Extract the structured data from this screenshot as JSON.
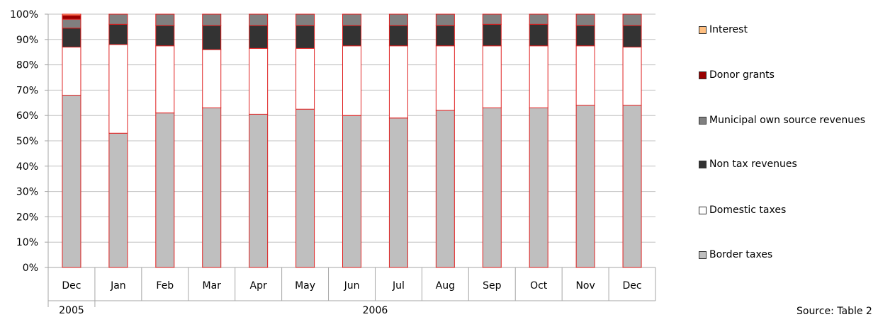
{
  "chart_data": {
    "type": "bar",
    "stacked": true,
    "normalized_percent": true,
    "categories": [
      "Dec",
      "Jan",
      "Feb",
      "Mar",
      "Apr",
      "May",
      "Jun",
      "Jul",
      "Aug",
      "Sep",
      "Oct",
      "Nov",
      "Dec"
    ],
    "year_groups": [
      {
        "label": "2005",
        "span": 1
      },
      {
        "label": "2006",
        "span": 12
      }
    ],
    "y_ticks": [
      "0%",
      "10%",
      "20%",
      "30%",
      "40%",
      "50%",
      "60%",
      "70%",
      "80%",
      "90%",
      "100%"
    ],
    "ylim": [
      0,
      100
    ],
    "grid": true,
    "legend_position": "right",
    "series": [
      {
        "name": "Border taxes",
        "color": "#bfbfbf",
        "values": [
          68,
          53,
          61,
          63,
          60.5,
          62.5,
          60,
          59,
          62,
          63,
          63,
          64,
          64
        ]
      },
      {
        "name": "Domestic taxes",
        "color": "#ffffff",
        "values": [
          19,
          35,
          26.5,
          23,
          26,
          24,
          27.5,
          28.5,
          25.5,
          24.5,
          24.5,
          23.5,
          23
        ]
      },
      {
        "name": "Non tax revenues",
        "color": "#333333",
        "values": [
          7.5,
          8,
          8,
          9.5,
          9,
          9,
          8,
          8,
          8,
          8.5,
          8.5,
          8,
          8.5
        ]
      },
      {
        "name": "Municipal own source revenues",
        "color": "#808080",
        "values": [
          3.5,
          4,
          4.5,
          4.5,
          4.5,
          4.5,
          4.5,
          4.5,
          4.5,
          4,
          4,
          4.5,
          4.5
        ]
      },
      {
        "name": "Donor grants",
        "color": "#990000",
        "values": [
          1.5,
          0,
          0,
          0,
          0,
          0,
          0,
          0,
          0,
          0,
          0,
          0,
          0
        ]
      },
      {
        "name": "Interest",
        "color": "#ffbf80",
        "values": [
          0.5,
          0,
          0,
          0,
          0,
          0,
          0,
          0,
          0,
          0,
          0,
          0,
          0
        ]
      }
    ],
    "legend_order": [
      "Interest",
      "Donor grants",
      "Municipal own source revenues",
      "Non tax revenues",
      "Domestic taxes",
      "Border taxes"
    ]
  },
  "source_note": "Source: Table 2"
}
